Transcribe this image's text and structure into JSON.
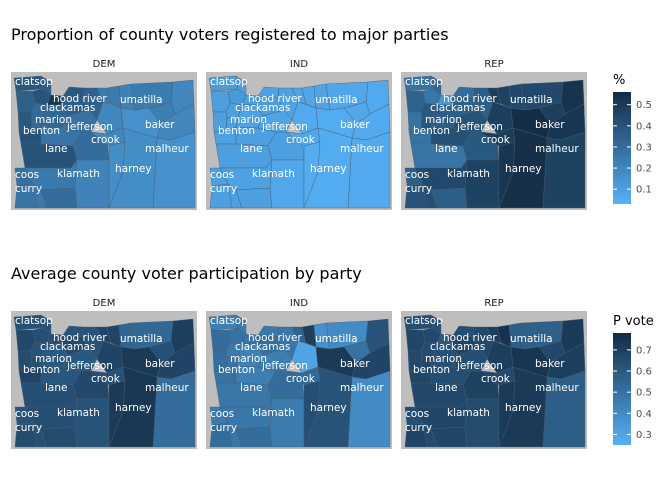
{
  "colors": {
    "panel_bg": "#bebebe",
    "scale_low": "#56b1f7",
    "scale_high": "#132b43",
    "county_border": "#4a5a6e"
  },
  "chart_data": [
    {
      "type": "heatmap",
      "title": "Proportion of county voters registered to major parties",
      "facets": [
        "DEM",
        "IND",
        "REP"
      ],
      "legend_title": "%",
      "legend_placement": "right",
      "grid": false,
      "scale_limits": [
        0.03,
        0.56
      ],
      "legend_ticks": [
        0.1,
        0.2,
        0.3,
        0.4,
        0.5
      ],
      "county_labels": [
        "clatsop",
        "hood river",
        "umatilla",
        "clackamas",
        "marion",
        "benton",
        "jefferson",
        "baker",
        "crook",
        "lane",
        "malheur",
        "harney",
        "coos",
        "klamath",
        "curry"
      ],
      "values": {
        "DEM": {
          "clatsop": 0.38,
          "columbia": 0.36,
          "washington": 0.4,
          "multnomah": 0.52,
          "tillamook": 0.35,
          "yamhill": 0.31,
          "lincoln": 0.38,
          "polk": 0.32,
          "marion": 0.32,
          "clackamas": 0.36,
          "hood river": 0.38,
          "wasco": 0.34,
          "sherman": 0.24,
          "gilliam": 0.24,
          "morrow": 0.22,
          "umatilla": 0.24,
          "union": 0.23,
          "wallowa": 0.2,
          "benton": 0.4,
          "linn": 0.27,
          "jefferson": 0.28,
          "wheeler": 0.2,
          "grant": 0.16,
          "baker": 0.2,
          "lane": 0.4,
          "deschutes": 0.3,
          "crook": 0.2,
          "malheur": 0.16,
          "coos": 0.29,
          "douglas": 0.25,
          "curry": 0.27,
          "josephine": 0.25,
          "jackson": 0.3,
          "klamath": 0.21,
          "lake": 0.17,
          "harney": 0.17
        },
        "IND": {
          "clatsop": 0.11,
          "columbia": 0.1,
          "washington": 0.12,
          "multnomah": 0.11,
          "tillamook": 0.1,
          "yamhill": 0.1,
          "lincoln": 0.1,
          "polk": 0.1,
          "marion": 0.09,
          "clackamas": 0.11,
          "hood river": 0.09,
          "wasco": 0.09,
          "sherman": 0.08,
          "gilliam": 0.07,
          "morrow": 0.08,
          "umatilla": 0.07,
          "union": 0.07,
          "wallowa": 0.06,
          "benton": 0.09,
          "linn": 0.1,
          "jefferson": 0.08,
          "wheeler": 0.06,
          "grant": 0.05,
          "baker": 0.06,
          "lane": 0.1,
          "deschutes": 0.1,
          "crook": 0.07,
          "malheur": 0.06,
          "coos": 0.1,
          "douglas": 0.09,
          "curry": 0.1,
          "josephine": 0.1,
          "jackson": 0.1,
          "klamath": 0.07,
          "lake": 0.05,
          "harney": 0.05
        },
        "REP": {
          "clatsop": 0.28,
          "columbia": 0.32,
          "washington": 0.26,
          "multnomah": 0.14,
          "tillamook": 0.34,
          "yamhill": 0.38,
          "lincoln": 0.28,
          "polk": 0.39,
          "marion": 0.36,
          "clackamas": 0.35,
          "hood river": 0.3,
          "wasco": 0.36,
          "sherman": 0.48,
          "gilliam": 0.47,
          "morrow": 0.44,
          "umatilla": 0.44,
          "union": 0.48,
          "wallowa": 0.53,
          "benton": 0.28,
          "linn": 0.41,
          "jefferson": 0.4,
          "wheeler": 0.48,
          "grant": 0.55,
          "baker": 0.52,
          "lane": 0.27,
          "deschutes": 0.38,
          "crook": 0.49,
          "malheur": 0.47,
          "coos": 0.36,
          "douglas": 0.44,
          "curry": 0.4,
          "josephine": 0.42,
          "jackson": 0.36,
          "klamath": 0.47,
          "lake": 0.52,
          "harney": 0.54
        }
      }
    },
    {
      "type": "heatmap",
      "title": "Average county voter participation by party",
      "facets": [
        "DEM",
        "IND",
        "REP"
      ],
      "legend_title": "P vote",
      "legend_placement": "right",
      "grid": false,
      "scale_limits": [
        0.25,
        0.78
      ],
      "legend_ticks": [
        0.3,
        0.4,
        0.5,
        0.6,
        0.7
      ],
      "county_labels": [
        "clatsop",
        "hood river",
        "umatilla",
        "clackamas",
        "marion",
        "benton",
        "jefferson",
        "baker",
        "crook",
        "lane",
        "malheur",
        "harney",
        "coos",
        "klamath",
        "curry"
      ],
      "values": {
        "DEM": {
          "clatsop": 0.63,
          "columbia": 0.62,
          "washington": 0.64,
          "multnomah": 0.63,
          "tillamook": 0.66,
          "yamhill": 0.62,
          "lincoln": 0.65,
          "polk": 0.64,
          "marion": 0.6,
          "clackamas": 0.66,
          "hood river": 0.62,
          "wasco": 0.62,
          "sherman": 0.68,
          "gilliam": 0.68,
          "morrow": 0.55,
          "umatilla": 0.54,
          "union": 0.63,
          "wallowa": 0.7,
          "benton": 0.68,
          "linn": 0.61,
          "jefferson": 0.6,
          "wheeler": 0.68,
          "grant": 0.72,
          "baker": 0.68,
          "lane": 0.64,
          "deschutes": 0.66,
          "crook": 0.63,
          "malheur": 0.52,
          "coos": 0.62,
          "douglas": 0.64,
          "curry": 0.65,
          "josephine": 0.63,
          "jackson": 0.65,
          "klamath": 0.62,
          "lake": 0.72,
          "harney": 0.73
        },
        "IND": {
          "clatsop": 0.45,
          "columbia": 0.46,
          "washington": 0.5,
          "multnomah": 0.49,
          "tillamook": 0.52,
          "yamhill": 0.47,
          "lincoln": 0.51,
          "polk": 0.49,
          "marion": 0.44,
          "clackamas": 0.51,
          "hood river": 0.47,
          "wasco": 0.48,
          "sherman": 0.56,
          "gilliam": 0.7,
          "morrow": 0.38,
          "umatilla": 0.4,
          "union": 0.5,
          "wallowa": 0.62,
          "benton": 0.5,
          "linn": 0.45,
          "jefferson": 0.45,
          "wheeler": 0.3,
          "grant": 0.72,
          "baker": 0.68,
          "lane": 0.48,
          "deschutes": 0.52,
          "crook": 0.53,
          "malheur": 0.4,
          "coos": 0.46,
          "douglas": 0.48,
          "curry": 0.52,
          "josephine": 0.48,
          "jackson": 0.52,
          "klamath": 0.46,
          "lake": 0.64,
          "harney": 0.62
        },
        "REP": {
          "clatsop": 0.64,
          "columbia": 0.63,
          "washington": 0.66,
          "multnomah": 0.6,
          "tillamook": 0.67,
          "yamhill": 0.65,
          "lincoln": 0.66,
          "polk": 0.67,
          "marion": 0.63,
          "clackamas": 0.68,
          "hood river": 0.64,
          "wasco": 0.66,
          "sherman": 0.71,
          "gilliam": 0.75,
          "morrow": 0.58,
          "umatilla": 0.57,
          "union": 0.66,
          "wallowa": 0.72,
          "benton": 0.67,
          "linn": 0.64,
          "jefferson": 0.64,
          "wheeler": 0.7,
          "grant": 0.74,
          "baker": 0.7,
          "lane": 0.66,
          "deschutes": 0.69,
          "crook": 0.66,
          "malheur": 0.58,
          "coos": 0.64,
          "douglas": 0.67,
          "curry": 0.68,
          "josephine": 0.65,
          "jackson": 0.67,
          "klamath": 0.65,
          "lake": 0.72,
          "harney": 0.72
        }
      }
    }
  ]
}
